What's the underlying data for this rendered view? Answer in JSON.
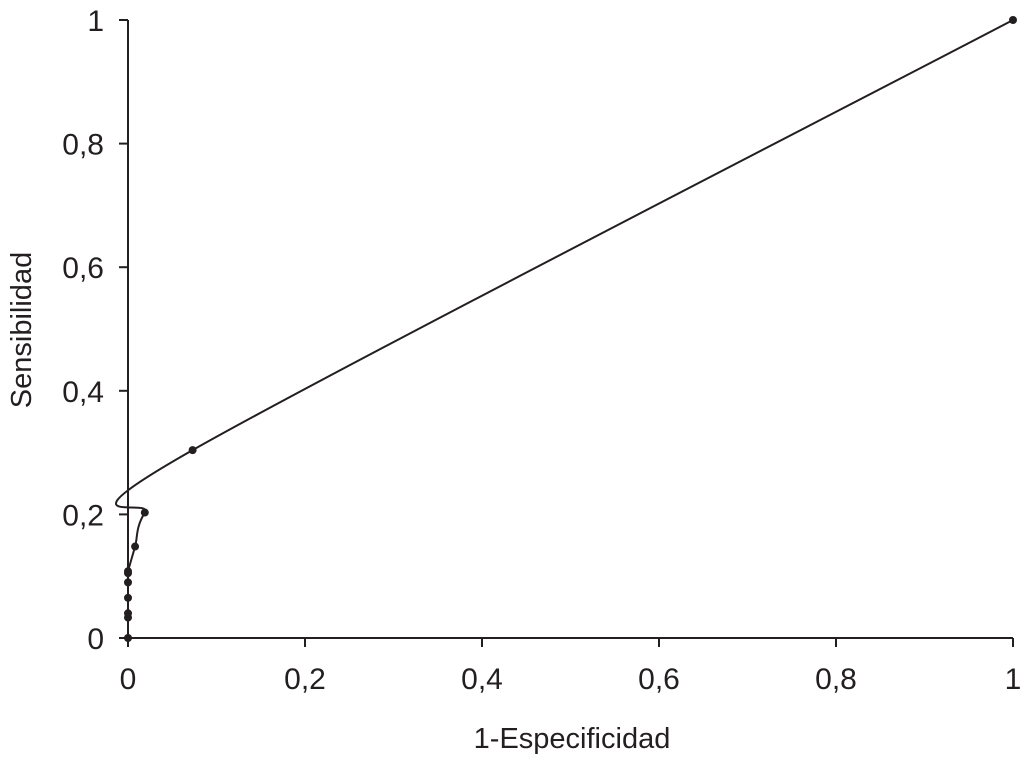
{
  "chart_data": {
    "type": "line",
    "title": "",
    "xlabel": "1-Especificidad",
    "ylabel": "Sensibilidad",
    "xlim": [
      0,
      1
    ],
    "ylim": [
      0,
      1
    ],
    "x_ticks": [
      0,
      0.2,
      0.4,
      0.6,
      0.8,
      1
    ],
    "y_ticks": [
      0,
      0.2,
      0.4,
      0.6,
      0.8,
      1
    ],
    "x_tick_labels": [
      "0",
      "0,2",
      "0,4",
      "0,6",
      "0,8",
      "1"
    ],
    "y_tick_labels": [
      "0",
      "0,2",
      "0,4",
      "0,6",
      "0,8",
      "1"
    ],
    "grid": false,
    "legend": "none",
    "series": [
      {
        "x": [
          0,
          0,
          0,
          0,
          0,
          0,
          0,
          0.008,
          0.019,
          0.073,
          1
        ],
        "y": [
          0,
          0.033,
          0.04,
          0.065,
          0.09,
          0.105,
          0.108,
          0.148,
          0.203,
          0.304,
          1
        ],
        "color": "#231f20"
      }
    ]
  }
}
